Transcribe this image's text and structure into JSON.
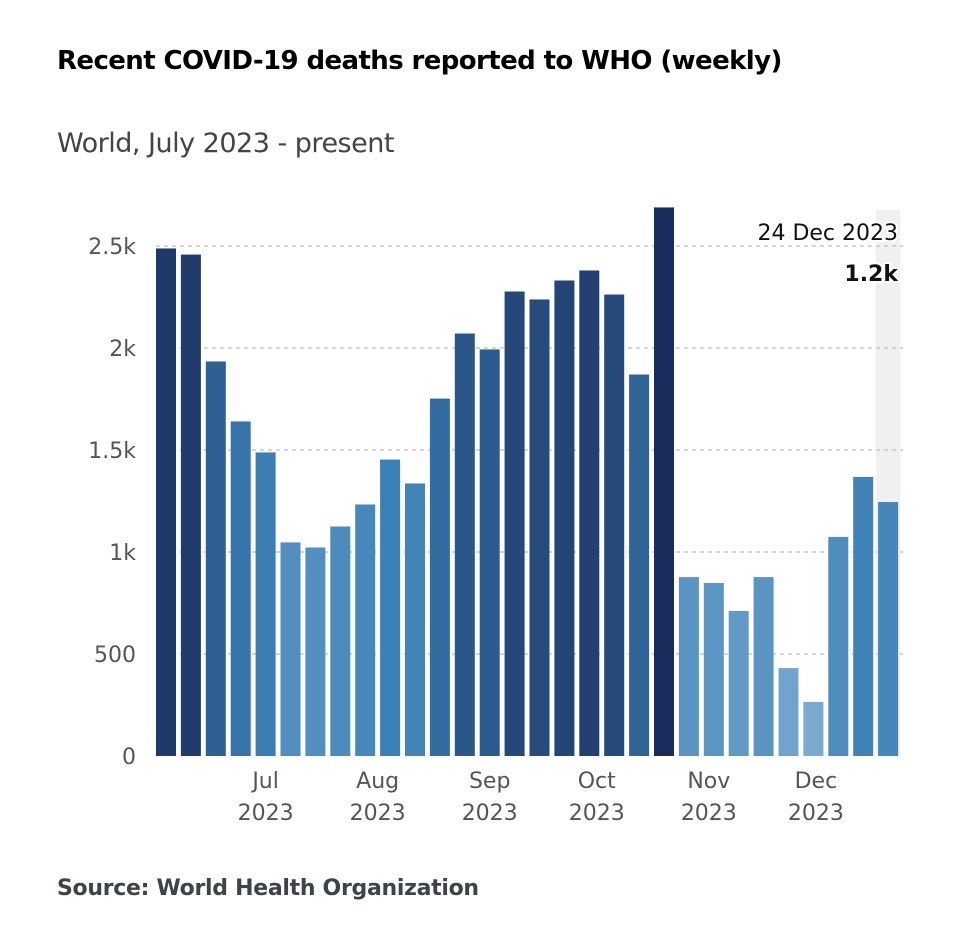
{
  "title": "Recent COVID-19 deaths reported to WHO (weekly)",
  "subtitle": "World, July 2023 - present",
  "source": "Source: World Health Organization",
  "chart_data": {
    "type": "bar",
    "title": "Recent COVID-19 deaths reported to WHO (weekly)",
    "subtitle": "World, July 2023 - present",
    "xlabel": "",
    "ylabel": "",
    "ylim": [
      0,
      2700
    ],
    "grid": true,
    "yticks": [
      0,
      500,
      1000,
      1500,
      2000,
      2500
    ],
    "ytick_labels": [
      "0",
      "500",
      "1k",
      "1.5k",
      "2k",
      "2.5k"
    ],
    "xtick_labels": [
      {
        "bar_index": 4,
        "line1": "Jul",
        "line2": "2023"
      },
      {
        "bar_index": 8.5,
        "line1": "Aug",
        "line2": "2023"
      },
      {
        "bar_index": 13,
        "line1": "Sep",
        "line2": "2023"
      },
      {
        "bar_index": 17.3,
        "line1": "Oct",
        "line2": "2023"
      },
      {
        "bar_index": 21.8,
        "line1": "Nov",
        "line2": "2023"
      },
      {
        "bar_index": 26.1,
        "line1": "Dec",
        "line2": "2023"
      }
    ],
    "values": [
      2488,
      2458,
      1934,
      1640,
      1488,
      1047,
      1022,
      1125,
      1233,
      1453,
      1336,
      1752,
      2071,
      1993,
      2277,
      2238,
      2331,
      2380,
      2262,
      1870,
      2689,
      877,
      848,
      711,
      877,
      431,
      265,
      1074,
      1368,
      1245
    ],
    "color_scale": {
      "low": "#7aaad0",
      "mid": "#3a7fb5",
      "high": "#1a2c5b"
    },
    "highlight": {
      "bar_index": 29,
      "date": "24 Dec 2023",
      "value_label": "1.2k",
      "band_color": "#f0f0f0"
    }
  }
}
